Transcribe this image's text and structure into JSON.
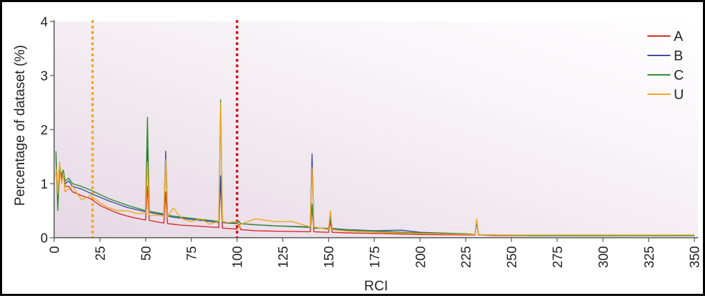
{
  "chart_data": {
    "type": "line",
    "title": "",
    "xlabel": "RCI",
    "ylabel": "Percentage of dataset (%)",
    "xlim": [
      0,
      352
    ],
    "ylim": [
      0,
      4
    ],
    "xticks": [
      "0",
      "25",
      "50",
      "75",
      "100",
      "125",
      "150",
      "175",
      "200",
      "225",
      "250",
      "275",
      "300",
      "325",
      "350"
    ],
    "yticks": [
      "0",
      "1",
      "2",
      "3",
      "4"
    ],
    "legend_position": "top-right",
    "reference_lines": [
      {
        "x": 21,
        "color": "#f5a623",
        "style": "dotted"
      },
      {
        "x": 100,
        "color": "#c8171e",
        "style": "dotted"
      }
    ],
    "series": [
      {
        "name": "A",
        "color": "#d42a2a",
        "x": [
          1,
          2,
          3,
          4,
          5,
          6,
          8,
          10,
          15,
          20,
          25,
          30,
          35,
          40,
          45,
          50,
          51,
          52,
          55,
          60,
          61,
          62,
          65,
          70,
          75,
          80,
          85,
          90,
          91,
          92,
          95,
          100,
          101,
          102,
          110,
          120,
          140,
          141,
          142,
          150,
          151,
          152,
          160,
          175,
          200,
          225,
          230,
          231,
          232,
          240,
          260,
          280,
          300,
          325,
          350
        ],
        "y": [
          1.2,
          0.9,
          1.25,
          1.05,
          1.15,
          0.95,
          0.95,
          0.85,
          0.78,
          0.72,
          0.6,
          0.52,
          0.45,
          0.4,
          0.36,
          0.33,
          0.95,
          0.32,
          0.3,
          0.27,
          0.85,
          0.26,
          0.25,
          0.23,
          0.22,
          0.21,
          0.2,
          0.19,
          1.1,
          0.18,
          0.17,
          0.16,
          0.25,
          0.15,
          0.13,
          0.12,
          0.11,
          0.6,
          0.11,
          0.1,
          0.3,
          0.1,
          0.09,
          0.08,
          0.06,
          0.05,
          0.05,
          0.3,
          0.05,
          0.04,
          0.04,
          0.04,
          0.04,
          0.04,
          0.04
        ]
      },
      {
        "name": "B",
        "color": "#3a4fa0",
        "x": [
          1,
          2,
          3,
          4,
          5,
          6,
          8,
          10,
          15,
          20,
          25,
          30,
          35,
          40,
          45,
          50,
          51,
          52,
          55,
          60,
          61,
          62,
          65,
          70,
          75,
          80,
          85,
          90,
          91,
          92,
          95,
          100,
          101,
          102,
          110,
          120,
          140,
          141,
          142,
          150,
          151,
          152,
          160,
          175,
          190,
          200,
          225,
          230,
          231,
          232,
          240,
          260,
          280,
          300,
          325,
          350
        ],
        "y": [
          1.5,
          0.6,
          1.3,
          1.1,
          1.2,
          1.0,
          1.05,
          0.95,
          0.9,
          0.82,
          0.75,
          0.68,
          0.62,
          0.56,
          0.52,
          0.48,
          1.65,
          0.47,
          0.45,
          0.42,
          1.6,
          0.4,
          0.38,
          0.36,
          0.34,
          0.32,
          0.3,
          0.28,
          1.15,
          0.28,
          0.27,
          0.26,
          0.3,
          0.26,
          0.24,
          0.22,
          0.2,
          1.55,
          0.18,
          0.17,
          0.4,
          0.17,
          0.15,
          0.13,
          0.14,
          0.1,
          0.07,
          0.06,
          0.3,
          0.05,
          0.05,
          0.04,
          0.04,
          0.04,
          0.04,
          0.04
        ]
      },
      {
        "name": "C",
        "color": "#2e8b2e",
        "x": [
          1,
          2,
          3,
          4,
          5,
          6,
          8,
          10,
          15,
          20,
          25,
          30,
          35,
          40,
          45,
          50,
          51,
          52,
          55,
          60,
          61,
          62,
          65,
          70,
          75,
          80,
          85,
          90,
          91,
          92,
          95,
          100,
          101,
          102,
          110,
          120,
          140,
          141,
          142,
          150,
          151,
          152,
          160,
          175,
          200,
          225,
          230,
          231,
          232,
          240,
          260,
          280,
          300,
          325,
          350
        ],
        "y": [
          1.6,
          0.5,
          1.35,
          1.15,
          1.25,
          1.05,
          1.1,
          1.0,
          0.95,
          0.88,
          0.8,
          0.72,
          0.66,
          0.6,
          0.55,
          0.5,
          2.23,
          0.49,
          0.47,
          0.44,
          1.45,
          0.42,
          0.4,
          0.38,
          0.36,
          0.34,
          0.32,
          0.3,
          2.55,
          0.29,
          0.28,
          0.27,
          0.3,
          0.26,
          0.24,
          0.22,
          0.19,
          0.62,
          0.18,
          0.17,
          0.35,
          0.16,
          0.14,
          0.12,
          0.09,
          0.07,
          0.06,
          0.33,
          0.05,
          0.05,
          0.04,
          0.04,
          0.04,
          0.04,
          0.04
        ]
      },
      {
        "name": "U",
        "color": "#f0a81c",
        "x": [
          1,
          2,
          3,
          4,
          5,
          6,
          8,
          10,
          15,
          20,
          25,
          30,
          35,
          40,
          45,
          50,
          51,
          52,
          55,
          60,
          61,
          62,
          65,
          70,
          75,
          80,
          85,
          90,
          91,
          92,
          95,
          100,
          101,
          102,
          110,
          120,
          130,
          140,
          141,
          142,
          150,
          151,
          152,
          160,
          175,
          200,
          225,
          230,
          231,
          232,
          240,
          260,
          280,
          300,
          325,
          350
        ],
        "y": [
          1.3,
          0.8,
          1.4,
          1.0,
          1.2,
          0.85,
          0.9,
          0.95,
          0.7,
          0.78,
          0.65,
          0.55,
          0.5,
          0.5,
          0.45,
          0.45,
          1.4,
          0.4,
          0.42,
          0.4,
          1.45,
          0.38,
          0.55,
          0.35,
          0.3,
          0.35,
          0.25,
          0.3,
          2.5,
          0.3,
          0.28,
          0.3,
          0.2,
          0.25,
          0.35,
          0.3,
          0.3,
          0.2,
          1.3,
          0.2,
          0.15,
          0.5,
          0.15,
          0.12,
          0.1,
          0.08,
          0.06,
          0.06,
          0.35,
          0.05,
          0.05,
          0.05,
          0.05,
          0.05,
          0.05,
          0.05
        ]
      }
    ]
  }
}
